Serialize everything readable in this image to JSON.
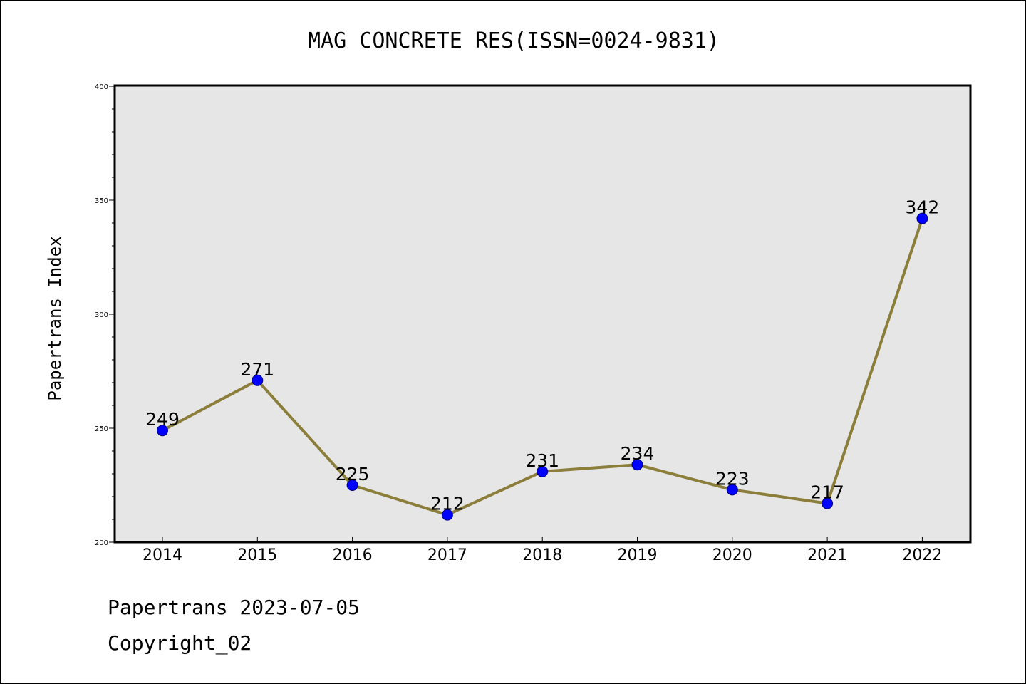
{
  "chart_data": {
    "type": "line",
    "title": "MAG CONCRETE RES(ISSN=0024-9831)",
    "xlabel": "",
    "ylabel": "Papertrans Index",
    "categories": [
      "2014",
      "2015",
      "2016",
      "2017",
      "2018",
      "2019",
      "2020",
      "2021",
      "2022"
    ],
    "series": [
      {
        "values": [
          249,
          271,
          225,
          212,
          231,
          234,
          223,
          217,
          342
        ]
      }
    ],
    "data_labels": [
      "249",
      "271",
      "225",
      "212",
      "231",
      "234",
      "223",
      "217",
      "342"
    ],
    "ylim": [
      200,
      400
    ],
    "yticks": [
      200,
      250,
      300,
      350,
      400
    ],
    "ytick_labels": [
      "200",
      "250",
      "300",
      "350",
      "400"
    ],
    "grid": false,
    "colors": {
      "line": "#8b7d3a",
      "marker_fill": "#0000ff",
      "marker_edge": "#000080",
      "plot_background": "#e6e6e6"
    }
  },
  "footer": {
    "line1": "Papertrans 2023-07-05",
    "line2": "Copyright_02"
  }
}
